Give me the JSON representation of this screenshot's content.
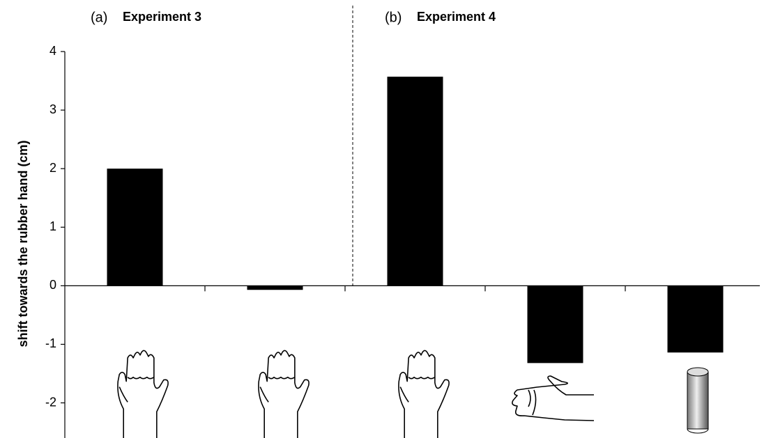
{
  "chart_data": {
    "type": "bar",
    "ylabel": "shift  towards the rubber hand (cm)",
    "panels": [
      {
        "letter": "(a)",
        "title": "Experiment 3"
      },
      {
        "letter": "(b)",
        "title": "Experiment 4"
      }
    ],
    "categories": [
      null,
      null,
      null,
      null,
      null
    ],
    "values": [
      2.0,
      -0.07,
      3.57,
      -1.32,
      -1.14
    ],
    "color": "#000000",
    "ylim": [
      -2.6,
      4
    ],
    "yticks": [
      -2,
      -1,
      0,
      1,
      2,
      3,
      4
    ]
  }
}
